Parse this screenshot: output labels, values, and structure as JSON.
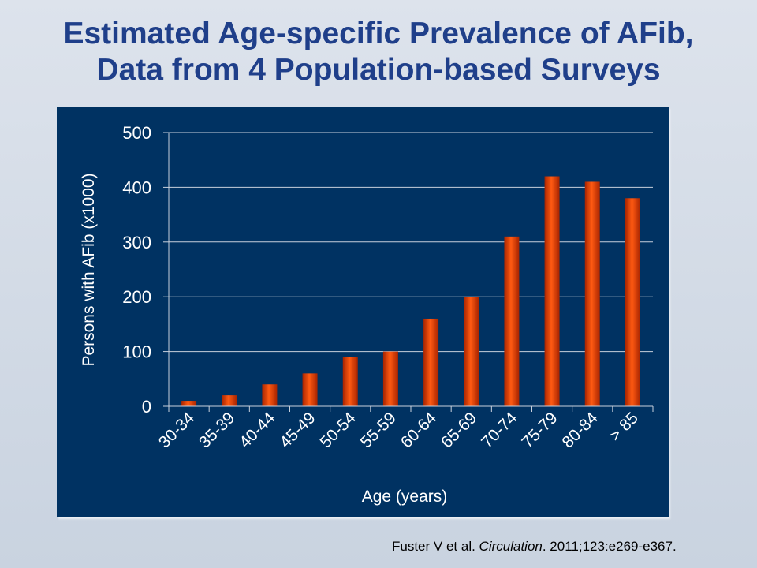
{
  "slide": {
    "title_line1": "Estimated Age-specific Prevalence of AFib,",
    "title_line2": "Data from 4 Population-based Surveys"
  },
  "citation": {
    "authors": "Fuster V et al. ",
    "journal": "Circulation",
    "details": ". 2011;123:e269-e367."
  },
  "colors": {
    "panel_background": "#003262",
    "title": "#1f3f8a",
    "bar_center": "#ff5a12",
    "bar_edge": "#a82400",
    "grid": "#c8d0dc",
    "text": "#ffffff"
  },
  "chart_data": {
    "type": "bar",
    "categories": [
      "30-34",
      "35-39",
      "40-44",
      "45-49",
      "50-54",
      "55-59",
      "60-64",
      "65-69",
      "70-74",
      "75-79",
      "80-84",
      "> 85"
    ],
    "values": [
      10,
      20,
      40,
      60,
      90,
      100,
      160,
      200,
      310,
      420,
      410,
      380
    ],
    "xlabel": "Age (years)",
    "ylabel": "Persons with AFib (x1000)",
    "ylim": [
      0,
      500
    ],
    "yticks": [
      0,
      100,
      200,
      300,
      400,
      500
    ],
    "grid": true,
    "legend": "none"
  }
}
